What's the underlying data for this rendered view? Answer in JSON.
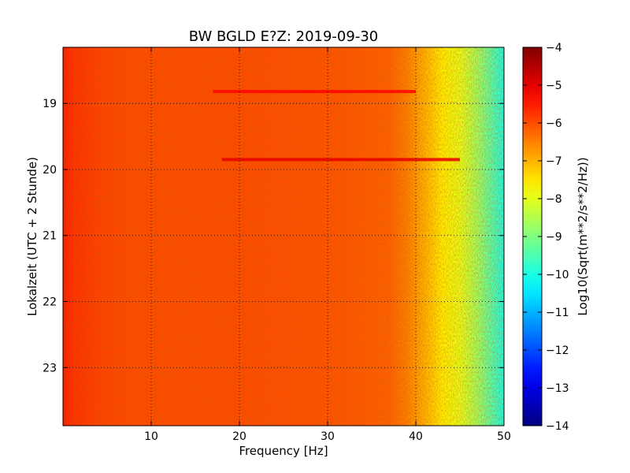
{
  "chart_data": {
    "type": "heatmap",
    "title": "BW BGLD E?Z: 2019-09-30",
    "xlabel": "Frequency [Hz]",
    "ylabel": "Lokalzeit (UTC + 2 Stunde)",
    "xlim": [
      0,
      50
    ],
    "ylim": [
      18.15,
      23.88
    ],
    "y_inverted": true,
    "x_ticks": [
      10,
      20,
      30,
      40,
      50
    ],
    "x_tick_labels": [
      "10",
      "20",
      "30",
      "40",
      "50"
    ],
    "y_ticks": [
      19,
      20,
      21,
      22,
      23
    ],
    "y_tick_labels": [
      "19",
      "20",
      "21",
      "22",
      "23"
    ],
    "grid": true,
    "colorbar": {
      "label": "Log10(Sqrt(m**2/s**2/Hz))",
      "range": [
        -14,
        -4
      ],
      "ticks": [
        -4,
        -5,
        -6,
        -7,
        -8,
        -9,
        -10,
        -11,
        -12,
        -13,
        -14
      ],
      "tick_labels": [
        "−4",
        "−5",
        "−6",
        "−7",
        "−8",
        "−9",
        "−10",
        "−11",
        "−12",
        "−13",
        "−14"
      ],
      "colormap": "jet"
    },
    "spectrum_profile": [
      {
        "f": 0,
        "v": -5.5
      },
      {
        "f": 1,
        "v": -5.7
      },
      {
        "f": 4,
        "v": -5.9
      },
      {
        "f": 8,
        "v": -6.0
      },
      {
        "f": 20,
        "v": -6.0
      },
      {
        "f": 30,
        "v": -6.05
      },
      {
        "f": 37,
        "v": -6.2
      },
      {
        "f": 39,
        "v": -6.5
      },
      {
        "f": 41,
        "v": -7.0
      },
      {
        "f": 43,
        "v": -7.6
      },
      {
        "f": 45,
        "v": -8.0
      },
      {
        "f": 47,
        "v": -8.7
      },
      {
        "f": 49,
        "v": -9.6
      },
      {
        "f": 50,
        "v": -10.0
      }
    ],
    "line_features": [
      {
        "time": 18.82,
        "f_start": 17,
        "f_end": 40,
        "v": -5.3
      },
      {
        "time": 19.85,
        "f_start": 18,
        "f_end": 45,
        "v": -5.0
      }
    ]
  }
}
